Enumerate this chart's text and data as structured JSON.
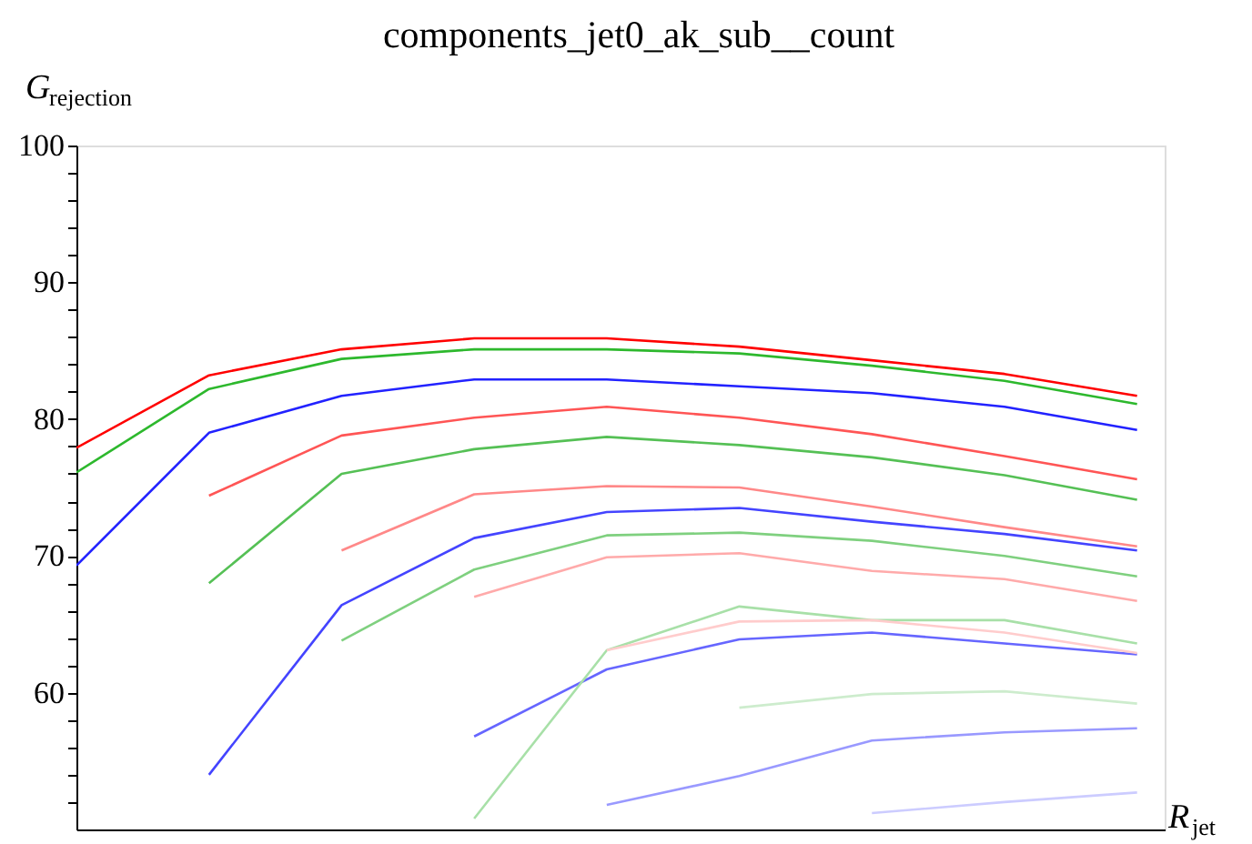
{
  "chart_data": {
    "type": "line",
    "title": "components_jet0_ak_sub__count",
    "xlabel": "R$_{jet}$",
    "ylabel": "G$_{rejection}$",
    "categories": [
      null,
      null,
      null,
      null,
      null,
      null,
      null,
      null,
      null
    ],
    "ylim": [
      50,
      100
    ],
    "yticks": [
      {
        "value": 52,
        "label": null
      },
      {
        "value": 54,
        "label": null
      },
      {
        "value": 56,
        "label": null
      },
      {
        "value": 58,
        "label": null
      },
      60,
      {
        "value": 62,
        "label": null
      },
      {
        "value": 64,
        "label": null
      },
      {
        "value": 66,
        "label": null
      },
      {
        "value": 68,
        "label": null
      },
      70,
      {
        "value": 72,
        "label": null
      },
      {
        "value": 74,
        "label": null
      },
      {
        "value": 76,
        "label": null
      },
      {
        "value": 78,
        "label": null
      },
      80,
      {
        "value": 82,
        "label": null
      },
      {
        "value": 84,
        "label": null
      },
      {
        "value": 86,
        "label": null
      },
      {
        "value": 88,
        "label": null
      },
      90,
      {
        "value": 92,
        "label": null
      },
      {
        "value": 94,
        "label": null
      },
      {
        "value": 96,
        "label": null
      },
      {
        "value": 98,
        "label": null
      },
      100
    ],
    "tick_labels": "y",
    "grid": false,
    "legend": false,
    "marker": "none",
    "line_style": "solid",
    "series": [
      {
        "color": "#ff0000",
        "values": [
          77.9,
          83.2,
          85.1,
          85.9,
          85.9,
          85.3,
          84.3,
          83.3,
          81.7
        ]
      },
      {
        "color": "#2db82d",
        "values": [
          76.1,
          82.2,
          84.4,
          85.1,
          85.1,
          84.8,
          83.9,
          82.8,
          81.1
        ]
      },
      {
        "color": "#2222ff",
        "values": [
          69.3,
          79.0,
          81.7,
          82.9,
          82.9,
          82.4,
          81.9,
          80.9,
          79.2
        ]
      },
      {
        "color": "#ff5555",
        "values": [
          null,
          74.4,
          78.8,
          80.1,
          80.9,
          80.1,
          78.9,
          77.3,
          75.6
        ]
      },
      {
        "color": "#55c055",
        "values": [
          null,
          68.0,
          76.0,
          77.8,
          78.7,
          78.1,
          77.2,
          75.9,
          74.1
        ]
      },
      {
        "color": "#ff8888",
        "values": [
          null,
          null,
          70.4,
          74.5,
          75.1,
          75.0,
          73.6,
          72.1,
          70.7
        ]
      },
      {
        "color": "#4444ff",
        "values": [
          null,
          54.0,
          66.4,
          71.3,
          73.2,
          73.5,
          72.5,
          71.6,
          70.4
        ]
      },
      {
        "color": "#7fd07f",
        "values": [
          null,
          null,
          63.8,
          69.0,
          71.5,
          71.7,
          71.1,
          70.0,
          68.5
        ]
      },
      {
        "color": "#ffaaaa",
        "values": [
          null,
          null,
          null,
          67.0,
          69.9,
          70.2,
          68.9,
          68.3,
          66.7
        ]
      },
      {
        "color": "#6666ff",
        "values": [
          null,
          null,
          null,
          56.8,
          61.7,
          63.9,
          64.4,
          63.6,
          62.8
        ]
      },
      {
        "color": "#a8e0a8",
        "values": [
          null,
          null,
          null,
          50.8,
          63.1,
          66.3,
          65.3,
          65.3,
          63.6
        ]
      },
      {
        "color": "#ffcccc",
        "values": [
          null,
          null,
          null,
          null,
          63.1,
          65.2,
          65.3,
          64.4,
          62.9
        ]
      },
      {
        "color": "#cdeccd",
        "values": [
          null,
          null,
          null,
          null,
          null,
          58.9,
          59.9,
          60.1,
          59.2
        ]
      },
      {
        "color": "#9999ff",
        "values": [
          null,
          null,
          null,
          null,
          51.8,
          53.9,
          56.5,
          57.1,
          57.4
        ]
      },
      {
        "color": "#ccccff",
        "values": [
          null,
          null,
          null,
          null,
          null,
          null,
          51.2,
          52.0,
          52.7
        ]
      }
    ]
  }
}
